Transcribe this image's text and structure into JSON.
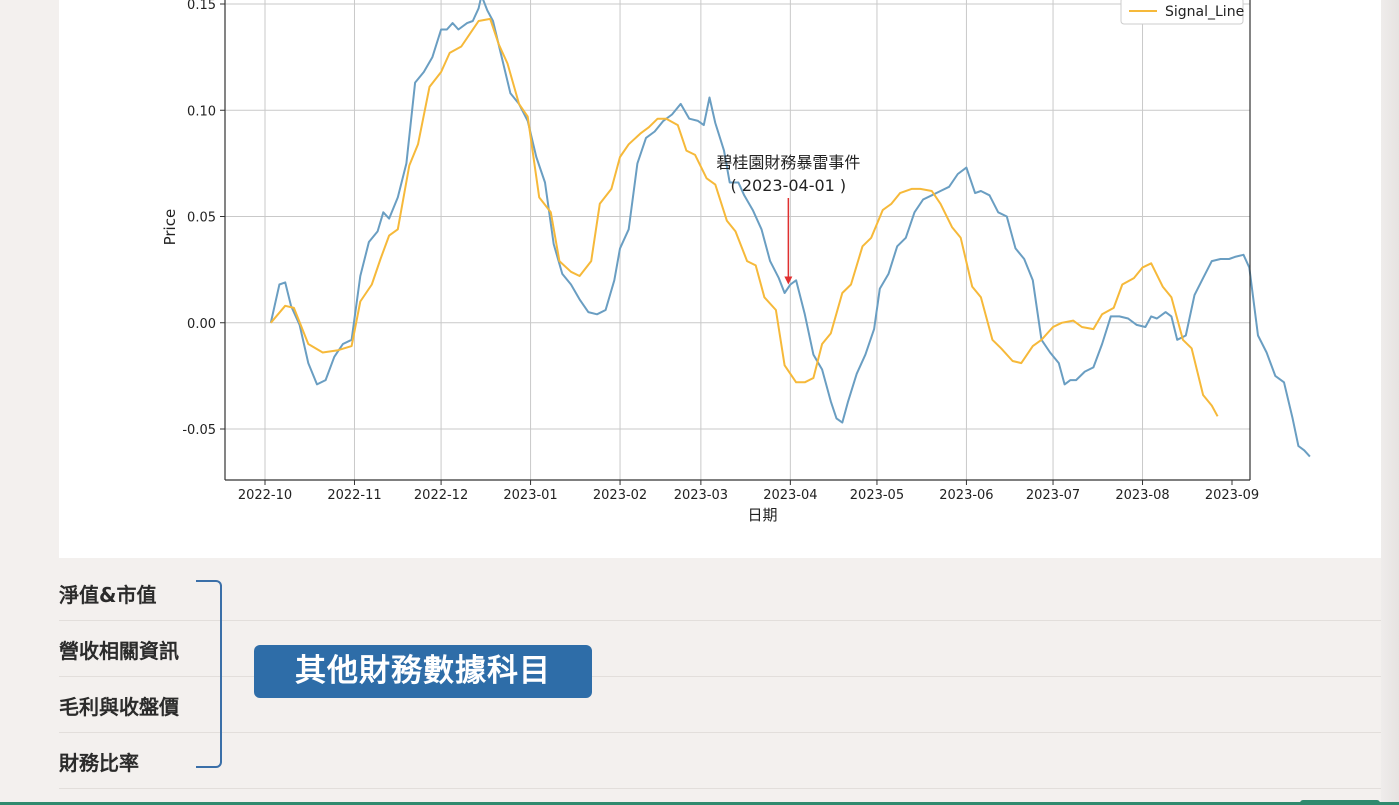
{
  "chart_data": {
    "type": "line",
    "title": "",
    "xlabel": "日期",
    "ylabel": "Price",
    "x_start": "2022-10-01",
    "x_end": "2023-09-01",
    "x_ticks": [
      "2022-10",
      "2022-11",
      "2022-12",
      "2023-01",
      "2023-02",
      "2023-03",
      "2023-04",
      "2023-05",
      "2023-06",
      "2023-07",
      "2023-08",
      "2023-09"
    ],
    "ylim": [
      -0.072,
      0.15
    ],
    "y_ticks": [
      0.15,
      0.1,
      0.05,
      0.0,
      -0.05
    ],
    "y_tick_labels": [
      "0.15",
      "0.10",
      "0.05",
      "0.00",
      "-0.05"
    ],
    "grid": true,
    "legend": {
      "placement": "top-right",
      "entries": [
        "Signal_Line"
      ]
    },
    "series": [
      {
        "name": "",
        "color": "#6a9ec2",
        "points": [
          [
            "2022-10-03",
            0.0
          ],
          [
            "2022-10-06",
            0.018
          ],
          [
            "2022-10-08",
            0.019
          ],
          [
            "2022-10-10",
            0.008
          ],
          [
            "2022-10-13",
            -0.001
          ],
          [
            "2022-10-16",
            -0.019
          ],
          [
            "2022-10-19",
            -0.029
          ],
          [
            "2022-10-22",
            -0.027
          ],
          [
            "2022-10-25",
            -0.016
          ],
          [
            "2022-10-28",
            -0.01
          ],
          [
            "2022-10-31",
            -0.008
          ],
          [
            "2022-11-03",
            0.022
          ],
          [
            "2022-11-06",
            0.038
          ],
          [
            "2022-11-09",
            0.043
          ],
          [
            "2022-11-11",
            0.052
          ],
          [
            "2022-11-13",
            0.049
          ],
          [
            "2022-11-16",
            0.059
          ],
          [
            "2022-11-19",
            0.075
          ],
          [
            "2022-11-22",
            0.113
          ],
          [
            "2022-11-25",
            0.118
          ],
          [
            "2022-11-28",
            0.125
          ],
          [
            "2022-12-01",
            0.138
          ],
          [
            "2022-12-03",
            0.138
          ],
          [
            "2022-12-05",
            0.141
          ],
          [
            "2022-12-07",
            0.138
          ],
          [
            "2022-12-10",
            0.141
          ],
          [
            "2022-12-12",
            0.142
          ],
          [
            "2022-12-14",
            0.148
          ],
          [
            "2022-12-15",
            0.154
          ],
          [
            "2022-12-17",
            0.147
          ],
          [
            "2022-12-19",
            0.142
          ],
          [
            "2022-12-22",
            0.125
          ],
          [
            "2022-12-25",
            0.108
          ],
          [
            "2022-12-28",
            0.103
          ],
          [
            "2022-12-31",
            0.095
          ],
          [
            "2023-01-03",
            0.078
          ],
          [
            "2023-01-06",
            0.066
          ],
          [
            "2023-01-09",
            0.037
          ],
          [
            "2023-01-12",
            0.023
          ],
          [
            "2023-01-15",
            0.018
          ],
          [
            "2023-01-18",
            0.011
          ],
          [
            "2023-01-21",
            0.005
          ],
          [
            "2023-01-24",
            0.004
          ],
          [
            "2023-01-27",
            0.006
          ],
          [
            "2023-01-30",
            0.02
          ],
          [
            "2023-02-01",
            0.035
          ],
          [
            "2023-02-04",
            0.044
          ],
          [
            "2023-02-07",
            0.075
          ],
          [
            "2023-02-10",
            0.087
          ],
          [
            "2023-02-13",
            0.09
          ],
          [
            "2023-02-16",
            0.095
          ],
          [
            "2023-02-19",
            0.098
          ],
          [
            "2023-02-22",
            0.103
          ],
          [
            "2023-02-25",
            0.096
          ],
          [
            "2023-02-28",
            0.095
          ],
          [
            "2023-03-02",
            0.093
          ],
          [
            "2023-03-04",
            0.106
          ],
          [
            "2023-03-06",
            0.094
          ],
          [
            "2023-03-09",
            0.081
          ],
          [
            "2023-03-11",
            0.066
          ],
          [
            "2023-03-14",
            0.066
          ],
          [
            "2023-03-16",
            0.06
          ],
          [
            "2023-03-19",
            0.053
          ],
          [
            "2023-03-22",
            0.044
          ],
          [
            "2023-03-25",
            0.029
          ],
          [
            "2023-03-28",
            0.021
          ],
          [
            "2023-03-30",
            0.014
          ],
          [
            "2023-04-01",
            0.018
          ],
          [
            "2023-04-03",
            0.02
          ],
          [
            "2023-04-06",
            0.004
          ],
          [
            "2023-04-09",
            -0.015
          ],
          [
            "2023-04-12",
            -0.022
          ],
          [
            "2023-04-15",
            -0.037
          ],
          [
            "2023-04-17",
            -0.045
          ],
          [
            "2023-04-19",
            -0.047
          ],
          [
            "2023-04-21",
            -0.037
          ],
          [
            "2023-04-24",
            -0.024
          ],
          [
            "2023-04-27",
            -0.015
          ],
          [
            "2023-04-30",
            -0.003
          ],
          [
            "2023-05-02",
            0.016
          ],
          [
            "2023-05-05",
            0.023
          ],
          [
            "2023-05-08",
            0.036
          ],
          [
            "2023-05-11",
            0.04
          ],
          [
            "2023-05-14",
            0.052
          ],
          [
            "2023-05-17",
            0.058
          ],
          [
            "2023-05-20",
            0.06
          ],
          [
            "2023-05-23",
            0.062
          ],
          [
            "2023-05-26",
            0.064
          ],
          [
            "2023-05-29",
            0.07
          ],
          [
            "2023-06-01",
            0.073
          ],
          [
            "2023-06-04",
            0.061
          ],
          [
            "2023-06-06",
            0.062
          ],
          [
            "2023-06-09",
            0.06
          ],
          [
            "2023-06-12",
            0.052
          ],
          [
            "2023-06-15",
            0.05
          ],
          [
            "2023-06-18",
            0.035
          ],
          [
            "2023-06-21",
            0.03
          ],
          [
            "2023-06-24",
            0.02
          ],
          [
            "2023-06-27",
            -0.008
          ],
          [
            "2023-06-30",
            -0.014
          ],
          [
            "2023-07-03",
            -0.019
          ],
          [
            "2023-07-05",
            -0.029
          ],
          [
            "2023-07-07",
            -0.027
          ],
          [
            "2023-07-09",
            -0.027
          ],
          [
            "2023-07-12",
            -0.023
          ],
          [
            "2023-07-15",
            -0.021
          ],
          [
            "2023-07-18",
            -0.01
          ],
          [
            "2023-07-21",
            0.003
          ],
          [
            "2023-07-24",
            0.003
          ],
          [
            "2023-07-27",
            0.002
          ],
          [
            "2023-07-30",
            -0.001
          ],
          [
            "2023-08-02",
            -0.002
          ],
          [
            "2023-08-04",
            0.003
          ],
          [
            "2023-08-06",
            0.002
          ],
          [
            "2023-08-09",
            0.005
          ],
          [
            "2023-08-11",
            0.003
          ],
          [
            "2023-08-13",
            -0.008
          ],
          [
            "2023-08-16",
            -0.006
          ],
          [
            "2023-08-19",
            0.013
          ],
          [
            "2023-08-22",
            0.021
          ],
          [
            "2023-08-25",
            0.029
          ],
          [
            "2023-08-28",
            0.03
          ],
          [
            "2023-08-31",
            0.03
          ],
          [
            "2023-09-02",
            0.031
          ],
          [
            "2023-09-05",
            0.032
          ],
          [
            "2023-09-07",
            0.026
          ],
          [
            "2023-09-10",
            -0.006
          ],
          [
            "2023-09-13",
            -0.014
          ],
          [
            "2023-09-16",
            -0.025
          ],
          [
            "2023-09-19",
            -0.028
          ],
          [
            "2023-09-22",
            -0.045
          ],
          [
            "2023-09-24",
            -0.058
          ],
          [
            "2023-09-26",
            -0.06
          ],
          [
            "2023-09-28",
            -0.063
          ]
        ]
      },
      {
        "name": "Signal_Line",
        "color": "#f6b93a",
        "points": [
          [
            "2022-10-03",
            0.0
          ],
          [
            "2022-10-08",
            0.008
          ],
          [
            "2022-10-11",
            0.007
          ],
          [
            "2022-10-16",
            -0.01
          ],
          [
            "2022-10-21",
            -0.014
          ],
          [
            "2022-10-26",
            -0.013
          ],
          [
            "2022-10-31",
            -0.011
          ],
          [
            "2022-11-03",
            0.01
          ],
          [
            "2022-11-07",
            0.018
          ],
          [
            "2022-11-10",
            0.03
          ],
          [
            "2022-11-13",
            0.041
          ],
          [
            "2022-11-16",
            0.044
          ],
          [
            "2022-11-20",
            0.074
          ],
          [
            "2022-11-23",
            0.084
          ],
          [
            "2022-11-27",
            0.111
          ],
          [
            "2022-12-01",
            0.118
          ],
          [
            "2022-12-04",
            0.127
          ],
          [
            "2022-12-08",
            0.13
          ],
          [
            "2022-12-11",
            0.136
          ],
          [
            "2022-12-14",
            0.142
          ],
          [
            "2022-12-18",
            0.143
          ],
          [
            "2022-12-21",
            0.131
          ],
          [
            "2022-12-24",
            0.122
          ],
          [
            "2022-12-28",
            0.103
          ],
          [
            "2022-12-31",
            0.097
          ],
          [
            "2023-01-04",
            0.059
          ],
          [
            "2023-01-08",
            0.052
          ],
          [
            "2023-01-11",
            0.029
          ],
          [
            "2023-01-15",
            0.024
          ],
          [
            "2023-01-18",
            0.022
          ],
          [
            "2023-01-22",
            0.029
          ],
          [
            "2023-01-25",
            0.056
          ],
          [
            "2023-01-29",
            0.063
          ],
          [
            "2023-02-01",
            0.078
          ],
          [
            "2023-02-04",
            0.084
          ],
          [
            "2023-02-08",
            0.089
          ],
          [
            "2023-02-11",
            0.092
          ],
          [
            "2023-02-14",
            0.096
          ],
          [
            "2023-02-17",
            0.096
          ],
          [
            "2023-02-21",
            0.093
          ],
          [
            "2023-02-24",
            0.081
          ],
          [
            "2023-02-27",
            0.079
          ],
          [
            "2023-03-03",
            0.068
          ],
          [
            "2023-03-06",
            0.065
          ],
          [
            "2023-03-10",
            0.048
          ],
          [
            "2023-03-13",
            0.043
          ],
          [
            "2023-03-17",
            0.029
          ],
          [
            "2023-03-20",
            0.027
          ],
          [
            "2023-03-23",
            0.012
          ],
          [
            "2023-03-27",
            0.006
          ],
          [
            "2023-03-30",
            -0.02
          ],
          [
            "2023-04-03",
            -0.028
          ],
          [
            "2023-04-06",
            -0.028
          ],
          [
            "2023-04-09",
            -0.026
          ],
          [
            "2023-04-12",
            -0.01
          ],
          [
            "2023-04-15",
            -0.005
          ],
          [
            "2023-04-19",
            0.014
          ],
          [
            "2023-04-22",
            0.018
          ],
          [
            "2023-04-26",
            0.036
          ],
          [
            "2023-04-29",
            0.04
          ],
          [
            "2023-05-03",
            0.053
          ],
          [
            "2023-05-06",
            0.056
          ],
          [
            "2023-05-09",
            0.061
          ],
          [
            "2023-05-13",
            0.063
          ],
          [
            "2023-05-16",
            0.063
          ],
          [
            "2023-05-20",
            0.062
          ],
          [
            "2023-05-23",
            0.056
          ],
          [
            "2023-05-27",
            0.045
          ],
          [
            "2023-05-30",
            0.04
          ],
          [
            "2023-06-03",
            0.017
          ],
          [
            "2023-06-06",
            0.012
          ],
          [
            "2023-06-10",
            -0.008
          ],
          [
            "2023-06-13",
            -0.012
          ],
          [
            "2023-06-17",
            -0.018
          ],
          [
            "2023-06-20",
            -0.019
          ],
          [
            "2023-06-24",
            -0.011
          ],
          [
            "2023-06-27",
            -0.008
          ],
          [
            "2023-07-01",
            -0.002
          ],
          [
            "2023-07-04",
            0.0
          ],
          [
            "2023-07-08",
            0.001
          ],
          [
            "2023-07-11",
            -0.002
          ],
          [
            "2023-07-15",
            -0.003
          ],
          [
            "2023-07-18",
            0.004
          ],
          [
            "2023-07-22",
            0.007
          ],
          [
            "2023-07-25",
            0.018
          ],
          [
            "2023-07-29",
            0.021
          ],
          [
            "2023-08-01",
            0.026
          ],
          [
            "2023-08-04",
            0.028
          ],
          [
            "2023-08-08",
            0.017
          ],
          [
            "2023-08-11",
            0.012
          ],
          [
            "2023-08-15",
            -0.008
          ],
          [
            "2023-08-18",
            -0.012
          ],
          [
            "2023-08-22",
            -0.034
          ],
          [
            "2023-08-25",
            -0.039
          ],
          [
            "2023-08-27",
            -0.044
          ]
        ]
      }
    ],
    "annotations": [
      {
        "text_line1": "碧桂園財務暴雷事件",
        "text_line2": "( 2023-04-01 )",
        "x": "2023-04-01",
        "y": 0.018,
        "arrow_color": "#e03030"
      }
    ]
  },
  "nav": {
    "items": [
      "淨值&市值",
      "營收相關資訊",
      "毛利與收盤價",
      "財務比率"
    ]
  },
  "callout": {
    "label": "其他財務數據科目"
  },
  "colors": {
    "accent": "#2e6da8",
    "bracket": "#3a6fa8",
    "bottom_bar": "#2f8a6e"
  }
}
